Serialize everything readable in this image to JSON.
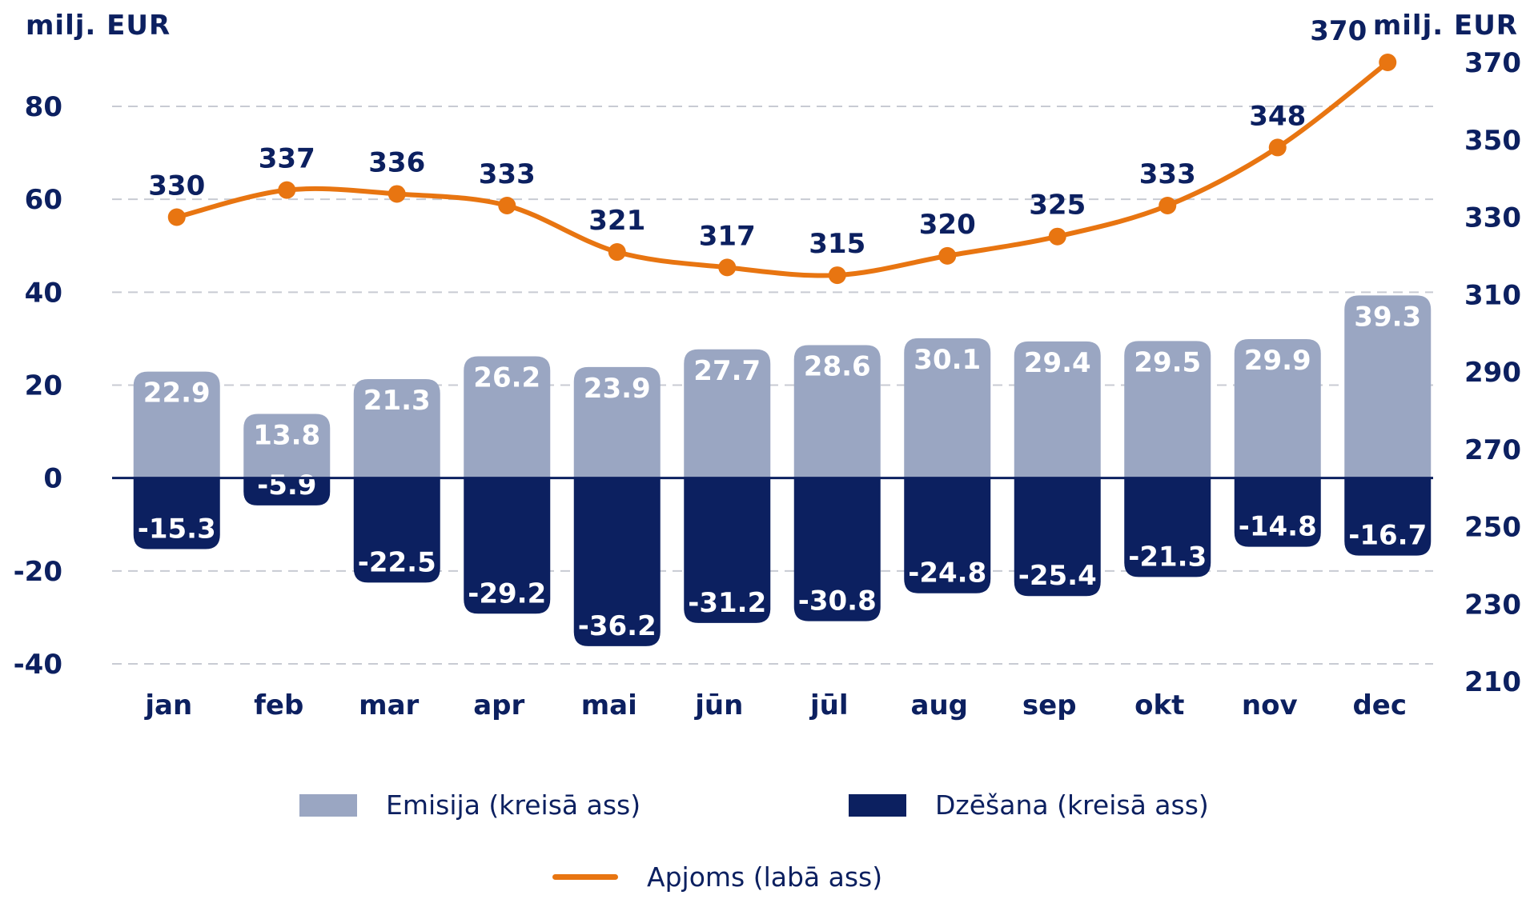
{
  "left_unit": "milj. EUR",
  "right_unit": "milj. EUR",
  "legend": {
    "emisija": "Emisija (kreisā ass)",
    "dzesana": "Dzēšana (kreisā ass)",
    "apjoms": "Apjoms (labā ass)"
  },
  "colors": {
    "emisija": "#9aa6c2",
    "dzesana": "#0c2060",
    "apjoms": "#e87511",
    "text": "#0c2060",
    "grid": "#c8cbd3"
  },
  "chart_data": {
    "type": "bar",
    "categories": [
      "jan",
      "feb",
      "mar",
      "apr",
      "mai",
      "jūn",
      "jūl",
      "aug",
      "sep",
      "okt",
      "nov",
      "dec"
    ],
    "series": [
      {
        "name": "Emisija (kreisā ass)",
        "axis": "left",
        "kind": "bar",
        "values": [
          22.9,
          13.8,
          21.3,
          26.2,
          23.9,
          27.7,
          28.6,
          30.1,
          29.4,
          29.5,
          29.9,
          39.3
        ]
      },
      {
        "name": "Dzēšana (kreisā ass)",
        "axis": "left",
        "kind": "bar",
        "values": [
          -15.3,
          -5.9,
          -22.5,
          -29.2,
          -36.2,
          -31.2,
          -30.8,
          -24.8,
          -25.4,
          -21.3,
          -14.8,
          -16.7
        ]
      },
      {
        "name": "Apjoms (labā ass)",
        "axis": "right",
        "kind": "line",
        "values": [
          330,
          337,
          336,
          333,
          321,
          317,
          315,
          320,
          325,
          333,
          348,
          370
        ]
      }
    ],
    "left_axis": {
      "ticks": [
        "80",
        "60",
        "40",
        "20",
        "0",
        "-20",
        "-40"
      ],
      "ylim": [
        -40,
        80
      ]
    },
    "right_axis": {
      "ticks": [
        "370",
        "350",
        "330",
        "310",
        "290",
        "270",
        "250",
        "230",
        "210"
      ],
      "ylim": [
        210,
        370
      ]
    },
    "grid": true,
    "legend_position": "bottom"
  }
}
